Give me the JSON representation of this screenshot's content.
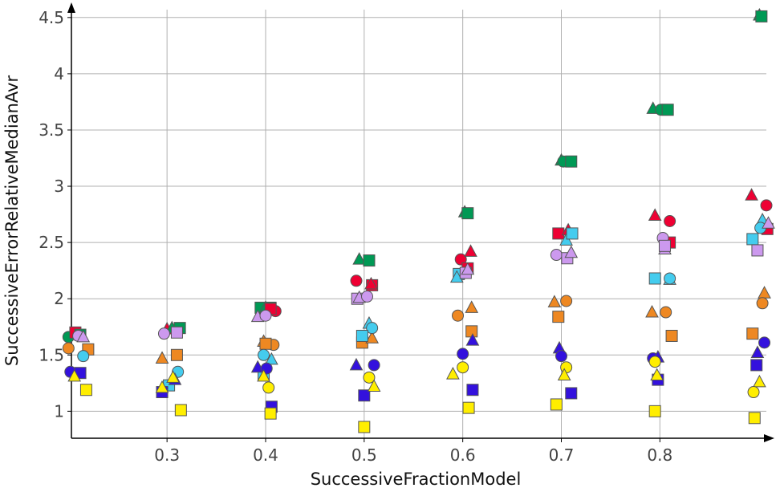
{
  "chart_data": {
    "type": "scatter",
    "xlabel": "SuccessiveFractionModel",
    "ylabel": "SuccessiveErrorRelativeMedianAvr",
    "xlim": [
      0.203,
      0.908
    ],
    "ylim": [
      0.76,
      4.57
    ],
    "xticks": [
      0.3,
      0.4,
      0.5,
      0.6,
      0.7,
      0.8
    ],
    "yticks": [
      1,
      1.5,
      2,
      2.5,
      3,
      3.5,
      4,
      4.5
    ],
    "grid": true,
    "legend": "none",
    "points": [
      {
        "x": 0.2,
        "y": 1.66,
        "shape": "circle",
        "color": "#009955"
      },
      {
        "x": 0.207,
        "y": 1.7,
        "shape": "square",
        "color": "#ee0033"
      },
      {
        "x": 0.212,
        "y": 1.68,
        "shape": "square",
        "color": "#009955"
      },
      {
        "x": 0.21,
        "y": 1.67,
        "shape": "circle",
        "color": "#cc99ee"
      },
      {
        "x": 0.215,
        "y": 1.66,
        "shape": "triangle",
        "color": "#cc99ee"
      },
      {
        "x": 0.2,
        "y": 1.56,
        "shape": "circle",
        "color": "#ee8822"
      },
      {
        "x": 0.22,
        "y": 1.55,
        "shape": "square",
        "color": "#ee8822"
      },
      {
        "x": 0.215,
        "y": 1.49,
        "shape": "circle",
        "color": "#44ccee"
      },
      {
        "x": 0.202,
        "y": 1.35,
        "shape": "circle",
        "color": "#3311dd"
      },
      {
        "x": 0.212,
        "y": 1.34,
        "shape": "square",
        "color": "#3311dd"
      },
      {
        "x": 0.206,
        "y": 1.31,
        "shape": "triangle",
        "color": "#ffee00"
      },
      {
        "x": 0.218,
        "y": 1.19,
        "shape": "square",
        "color": "#ffee00"
      },
      {
        "x": 0.3,
        "y": 1.73,
        "shape": "triangle",
        "color": "#ee0033"
      },
      {
        "x": 0.305,
        "y": 1.74,
        "shape": "triangle",
        "color": "#009955"
      },
      {
        "x": 0.313,
        "y": 1.74,
        "shape": "square",
        "color": "#009955"
      },
      {
        "x": 0.297,
        "y": 1.69,
        "shape": "circle",
        "color": "#cc99ee"
      },
      {
        "x": 0.31,
        "y": 1.7,
        "shape": "square",
        "color": "#cc99ee"
      },
      {
        "x": 0.295,
        "y": 1.47,
        "shape": "triangle",
        "color": "#ee8822"
      },
      {
        "x": 0.31,
        "y": 1.5,
        "shape": "square",
        "color": "#ee8822"
      },
      {
        "x": 0.311,
        "y": 1.35,
        "shape": "circle",
        "color": "#44ccee"
      },
      {
        "x": 0.302,
        "y": 1.23,
        "shape": "square",
        "color": "#44ccee"
      },
      {
        "x": 0.308,
        "y": 1.28,
        "shape": "triangle",
        "color": "#3311dd"
      },
      {
        "x": 0.295,
        "y": 1.17,
        "shape": "square",
        "color": "#3311dd"
      },
      {
        "x": 0.306,
        "y": 1.3,
        "shape": "triangle",
        "color": "#ffee00"
      },
      {
        "x": 0.295,
        "y": 1.21,
        "shape": "triangle",
        "color": "#ffee00"
      },
      {
        "x": 0.314,
        "y": 1.01,
        "shape": "square",
        "color": "#ffee00"
      },
      {
        "x": 0.395,
        "y": 1.92,
        "shape": "square",
        "color": "#009955"
      },
      {
        "x": 0.405,
        "y": 1.92,
        "shape": "square",
        "color": "#009955"
      },
      {
        "x": 0.4,
        "y": 1.92,
        "shape": "triangle",
        "color": "#009955"
      },
      {
        "x": 0.41,
        "y": 1.89,
        "shape": "circle",
        "color": "#ee0033"
      },
      {
        "x": 0.405,
        "y": 1.91,
        "shape": "square",
        "color": "#ee0033"
      },
      {
        "x": 0.392,
        "y": 1.84,
        "shape": "triangle",
        "color": "#cc99ee"
      },
      {
        "x": 0.4,
        "y": 1.85,
        "shape": "circle",
        "color": "#cc99ee"
      },
      {
        "x": 0.408,
        "y": 1.59,
        "shape": "circle",
        "color": "#ee8822"
      },
      {
        "x": 0.398,
        "y": 1.62,
        "shape": "triangle",
        "color": "#ee8822"
      },
      {
        "x": 0.4,
        "y": 1.6,
        "shape": "square",
        "color": "#ee8822"
      },
      {
        "x": 0.398,
        "y": 1.5,
        "shape": "circle",
        "color": "#44ccee"
      },
      {
        "x": 0.406,
        "y": 1.46,
        "shape": "triangle",
        "color": "#44ccee"
      },
      {
        "x": 0.398,
        "y": 1.32,
        "shape": "square",
        "color": "#44ccee"
      },
      {
        "x": 0.392,
        "y": 1.39,
        "shape": "triangle",
        "color": "#3311dd"
      },
      {
        "x": 0.401,
        "y": 1.38,
        "shape": "circle",
        "color": "#3311dd"
      },
      {
        "x": 0.406,
        "y": 1.04,
        "shape": "square",
        "color": "#3311dd"
      },
      {
        "x": 0.398,
        "y": 1.31,
        "shape": "triangle",
        "color": "#ffee00"
      },
      {
        "x": 0.403,
        "y": 1.21,
        "shape": "circle",
        "color": "#ffee00"
      },
      {
        "x": 0.405,
        "y": 0.98,
        "shape": "square",
        "color": "#ffee00"
      },
      {
        "x": 0.495,
        "y": 2.35,
        "shape": "triangle",
        "color": "#009955"
      },
      {
        "x": 0.505,
        "y": 2.34,
        "shape": "square",
        "color": "#009955"
      },
      {
        "x": 0.492,
        "y": 2.16,
        "shape": "circle",
        "color": "#ee0033"
      },
      {
        "x": 0.508,
        "y": 2.12,
        "shape": "square",
        "color": "#ee0033"
      },
      {
        "x": 0.507,
        "y": 2.13,
        "shape": "triangle",
        "color": "#ee0033"
      },
      {
        "x": 0.493,
        "y": 2.0,
        "shape": "square",
        "color": "#cc99ee"
      },
      {
        "x": 0.495,
        "y": 2.01,
        "shape": "triangle",
        "color": "#cc99ee"
      },
      {
        "x": 0.503,
        "y": 2.02,
        "shape": "circle",
        "color": "#cc99ee"
      },
      {
        "x": 0.498,
        "y": 1.61,
        "shape": "square",
        "color": "#ee8822"
      },
      {
        "x": 0.508,
        "y": 1.65,
        "shape": "triangle",
        "color": "#ee8822"
      },
      {
        "x": 0.505,
        "y": 1.78,
        "shape": "triangle",
        "color": "#44ccee"
      },
      {
        "x": 0.508,
        "y": 1.74,
        "shape": "circle",
        "color": "#44ccee"
      },
      {
        "x": 0.498,
        "y": 1.67,
        "shape": "square",
        "color": "#44ccee"
      },
      {
        "x": 0.492,
        "y": 1.41,
        "shape": "triangle",
        "color": "#3311dd"
      },
      {
        "x": 0.51,
        "y": 1.41,
        "shape": "circle",
        "color": "#3311dd"
      },
      {
        "x": 0.5,
        "y": 1.14,
        "shape": "square",
        "color": "#3311dd"
      },
      {
        "x": 0.505,
        "y": 1.3,
        "shape": "circle",
        "color": "#ffee00"
      },
      {
        "x": 0.51,
        "y": 1.22,
        "shape": "triangle",
        "color": "#ffee00"
      },
      {
        "x": 0.5,
        "y": 0.86,
        "shape": "square",
        "color": "#ffee00"
      },
      {
        "x": 0.602,
        "y": 2.77,
        "shape": "triangle",
        "color": "#009955"
      },
      {
        "x": 0.605,
        "y": 2.76,
        "shape": "square",
        "color": "#009955"
      },
      {
        "x": 0.598,
        "y": 2.35,
        "shape": "circle",
        "color": "#ee0033"
      },
      {
        "x": 0.608,
        "y": 2.42,
        "shape": "triangle",
        "color": "#ee0033"
      },
      {
        "x": 0.605,
        "y": 2.27,
        "shape": "square",
        "color": "#ee0033"
      },
      {
        "x": 0.596,
        "y": 2.22,
        "shape": "square",
        "color": "#44ccee"
      },
      {
        "x": 0.594,
        "y": 2.19,
        "shape": "triangle",
        "color": "#44ccee"
      },
      {
        "x": 0.603,
        "y": 2.23,
        "shape": "square",
        "color": "#cc99ee"
      },
      {
        "x": 0.605,
        "y": 2.26,
        "shape": "triangle",
        "color": "#cc99ee"
      },
      {
        "x": 0.595,
        "y": 1.85,
        "shape": "circle",
        "color": "#ee8822"
      },
      {
        "x": 0.609,
        "y": 1.92,
        "shape": "triangle",
        "color": "#ee8822"
      },
      {
        "x": 0.609,
        "y": 1.71,
        "shape": "square",
        "color": "#ee8822"
      },
      {
        "x": 0.61,
        "y": 1.63,
        "shape": "triangle",
        "color": "#3311dd"
      },
      {
        "x": 0.6,
        "y": 1.51,
        "shape": "circle",
        "color": "#3311dd"
      },
      {
        "x": 0.61,
        "y": 1.19,
        "shape": "square",
        "color": "#3311dd"
      },
      {
        "x": 0.6,
        "y": 1.39,
        "shape": "circle",
        "color": "#ffee00"
      },
      {
        "x": 0.59,
        "y": 1.33,
        "shape": "triangle",
        "color": "#ffee00"
      },
      {
        "x": 0.606,
        "y": 1.03,
        "shape": "square",
        "color": "#ffee00"
      },
      {
        "x": 0.7,
        "y": 3.23,
        "shape": "triangle",
        "color": "#009955"
      },
      {
        "x": 0.702,
        "y": 3.22,
        "shape": "circle",
        "color": "#009955"
      },
      {
        "x": 0.71,
        "y": 3.22,
        "shape": "square",
        "color": "#009955"
      },
      {
        "x": 0.697,
        "y": 2.58,
        "shape": "square",
        "color": "#ee0033"
      },
      {
        "x": 0.707,
        "y": 2.61,
        "shape": "triangle",
        "color": "#ee0033"
      },
      {
        "x": 0.705,
        "y": 2.52,
        "shape": "triangle",
        "color": "#44ccee"
      },
      {
        "x": 0.711,
        "y": 2.58,
        "shape": "square",
        "color": "#44ccee"
      },
      {
        "x": 0.695,
        "y": 2.39,
        "shape": "circle",
        "color": "#cc99ee"
      },
      {
        "x": 0.706,
        "y": 2.36,
        "shape": "square",
        "color": "#cc99ee"
      },
      {
        "x": 0.71,
        "y": 2.41,
        "shape": "triangle",
        "color": "#cc99ee"
      },
      {
        "x": 0.693,
        "y": 1.97,
        "shape": "triangle",
        "color": "#ee8822"
      },
      {
        "x": 0.705,
        "y": 1.98,
        "shape": "circle",
        "color": "#ee8822"
      },
      {
        "x": 0.697,
        "y": 1.84,
        "shape": "square",
        "color": "#ee8822"
      },
      {
        "x": 0.698,
        "y": 1.56,
        "shape": "triangle",
        "color": "#3311dd"
      },
      {
        "x": 0.7,
        "y": 1.49,
        "shape": "circle",
        "color": "#3311dd"
      },
      {
        "x": 0.71,
        "y": 1.16,
        "shape": "square",
        "color": "#3311dd"
      },
      {
        "x": 0.705,
        "y": 1.39,
        "shape": "circle",
        "color": "#ffee00"
      },
      {
        "x": 0.703,
        "y": 1.32,
        "shape": "triangle",
        "color": "#ffee00"
      },
      {
        "x": 0.695,
        "y": 1.06,
        "shape": "square",
        "color": "#ffee00"
      },
      {
        "x": 0.793,
        "y": 3.69,
        "shape": "triangle",
        "color": "#009955"
      },
      {
        "x": 0.801,
        "y": 3.68,
        "shape": "circle",
        "color": "#009955"
      },
      {
        "x": 0.808,
        "y": 3.68,
        "shape": "square",
        "color": "#009955"
      },
      {
        "x": 0.795,
        "y": 2.74,
        "shape": "triangle",
        "color": "#ee0033"
      },
      {
        "x": 0.81,
        "y": 2.69,
        "shape": "circle",
        "color": "#ee0033"
      },
      {
        "x": 0.81,
        "y": 2.5,
        "shape": "square",
        "color": "#ee0033"
      },
      {
        "x": 0.803,
        "y": 2.54,
        "shape": "circle",
        "color": "#cc99ee"
      },
      {
        "x": 0.805,
        "y": 2.44,
        "shape": "triangle",
        "color": "#cc99ee"
      },
      {
        "x": 0.805,
        "y": 2.47,
        "shape": "square",
        "color": "#cc99ee"
      },
      {
        "x": 0.795,
        "y": 2.18,
        "shape": "square",
        "color": "#44ccee"
      },
      {
        "x": 0.81,
        "y": 2.17,
        "shape": "triangle",
        "color": "#44ccee"
      },
      {
        "x": 0.81,
        "y": 2.18,
        "shape": "circle",
        "color": "#44ccee"
      },
      {
        "x": 0.792,
        "y": 1.88,
        "shape": "triangle",
        "color": "#ee8822"
      },
      {
        "x": 0.806,
        "y": 1.88,
        "shape": "circle",
        "color": "#ee8822"
      },
      {
        "x": 0.812,
        "y": 1.67,
        "shape": "square",
        "color": "#ee8822"
      },
      {
        "x": 0.793,
        "y": 1.47,
        "shape": "circle",
        "color": "#3311dd"
      },
      {
        "x": 0.798,
        "y": 1.48,
        "shape": "triangle",
        "color": "#3311dd"
      },
      {
        "x": 0.798,
        "y": 1.28,
        "shape": "square",
        "color": "#3311dd"
      },
      {
        "x": 0.795,
        "y": 1.44,
        "shape": "circle",
        "color": "#ffee00"
      },
      {
        "x": 0.797,
        "y": 1.32,
        "shape": "triangle",
        "color": "#ffee00"
      },
      {
        "x": 0.795,
        "y": 1.0,
        "shape": "square",
        "color": "#ffee00"
      },
      {
        "x": 0.901,
        "y": 4.52,
        "shape": "triangle",
        "color": "#009955"
      },
      {
        "x": 0.903,
        "y": 4.51,
        "shape": "square",
        "color": "#009955"
      },
      {
        "x": 0.893,
        "y": 2.92,
        "shape": "triangle",
        "color": "#ee0033"
      },
      {
        "x": 0.908,
        "y": 2.83,
        "shape": "circle",
        "color": "#ee0033"
      },
      {
        "x": 0.909,
        "y": 2.62,
        "shape": "square",
        "color": "#ee0033"
      },
      {
        "x": 0.904,
        "y": 2.7,
        "shape": "triangle",
        "color": "#44ccee"
      },
      {
        "x": 0.894,
        "y": 2.53,
        "shape": "square",
        "color": "#44ccee"
      },
      {
        "x": 0.902,
        "y": 2.63,
        "shape": "circle",
        "color": "#44ccee"
      },
      {
        "x": 0.91,
        "y": 2.67,
        "shape": "triangle",
        "color": "#cc99ee"
      },
      {
        "x": 0.899,
        "y": 2.43,
        "shape": "square",
        "color": "#cc99ee"
      },
      {
        "x": 0.906,
        "y": 2.05,
        "shape": "triangle",
        "color": "#ee8822"
      },
      {
        "x": 0.904,
        "y": 1.96,
        "shape": "circle",
        "color": "#ee8822"
      },
      {
        "x": 0.894,
        "y": 1.69,
        "shape": "square",
        "color": "#ee8822"
      },
      {
        "x": 0.906,
        "y": 1.61,
        "shape": "circle",
        "color": "#3311dd"
      },
      {
        "x": 0.899,
        "y": 1.52,
        "shape": "triangle",
        "color": "#3311dd"
      },
      {
        "x": 0.898,
        "y": 1.41,
        "shape": "square",
        "color": "#3311dd"
      },
      {
        "x": 0.901,
        "y": 1.26,
        "shape": "triangle",
        "color": "#ffee00"
      },
      {
        "x": 0.895,
        "y": 1.17,
        "shape": "circle",
        "color": "#ffee00"
      },
      {
        "x": 0.896,
        "y": 0.94,
        "shape": "square",
        "color": "#ffee00"
      }
    ]
  }
}
